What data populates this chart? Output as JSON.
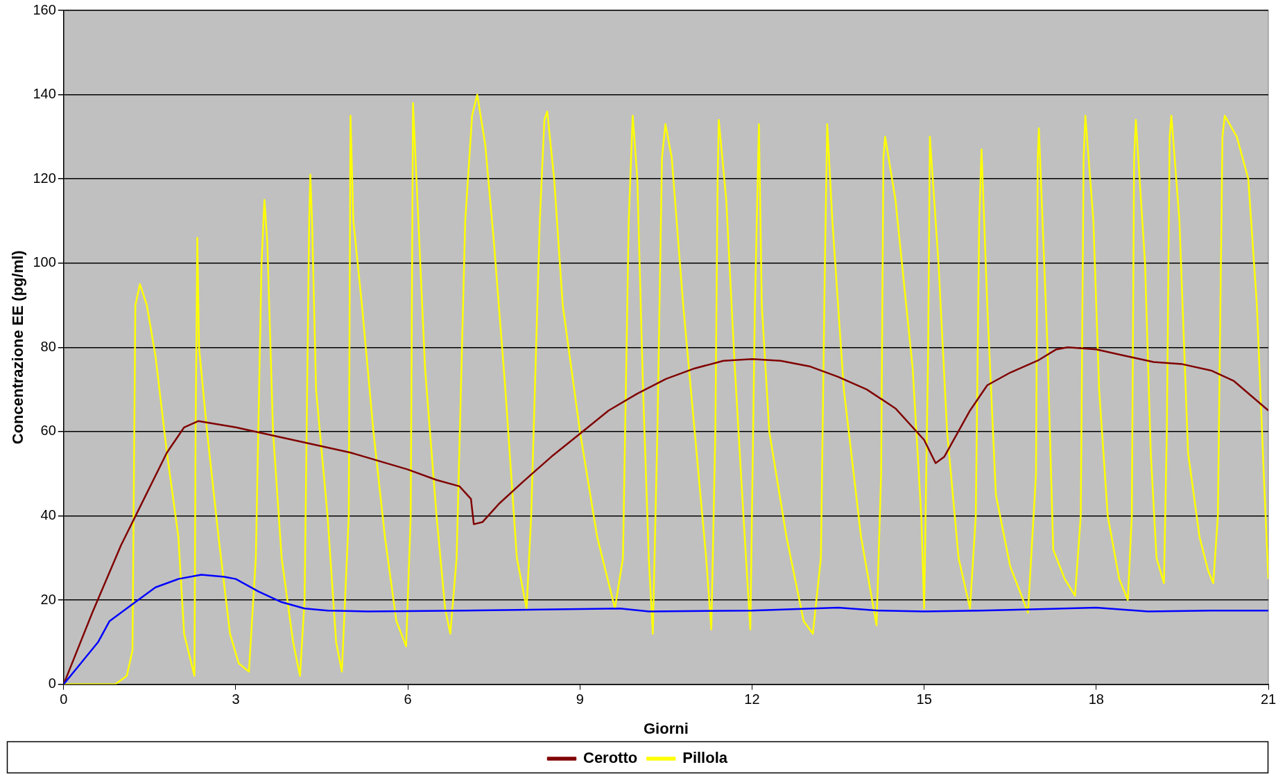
{
  "chart_data": {
    "type": "line",
    "xlabel": "Giorni",
    "ylabel": "Concentrazione EE (pg/ml)",
    "xlim": [
      0,
      21
    ],
    "xticks": [
      0,
      3,
      6,
      9,
      12,
      15,
      18,
      21
    ],
    "ylim": [
      0,
      160
    ],
    "yticks": [
      0,
      20,
      40,
      60,
      80,
      100,
      120,
      140,
      160
    ],
    "grid": "y",
    "legend": "bottom",
    "marker": "none",
    "line_style": "solid",
    "series": [
      {
        "color": "#0000ff",
        "x": [
          0,
          0.3,
          0.6,
          0.8,
          1.2,
          1.6,
          2.0,
          2.4,
          2.8,
          3.0,
          3.4,
          3.8,
          4.2,
          4.6,
          5.3,
          7,
          9.7,
          10.2,
          12,
          13.5,
          14.2,
          15,
          16,
          18,
          18.9,
          20,
          21
        ],
        "values": [
          0,
          5,
          10,
          15,
          19,
          23,
          25,
          26,
          25.5,
          25,
          22,
          19.5,
          18,
          17.5,
          17.3,
          17.5,
          18,
          17.3,
          17.5,
          18.2,
          17.5,
          17.3,
          17.5,
          18.2,
          17.3,
          17.5,
          17.5
        ]
      },
      {
        "name": "Cerotto",
        "color": "#800000",
        "x": [
          0,
          0.5,
          1,
          1.4,
          1.8,
          2.1,
          2.35,
          3,
          4,
          5,
          6,
          6.5,
          6.9,
          7.1,
          7.15,
          7.3,
          7.6,
          8,
          8.5,
          9,
          9.5,
          10,
          10.5,
          11,
          11.5,
          12,
          12.5,
          13,
          13.5,
          14,
          14.5,
          15,
          15.2,
          15.35,
          15.8,
          16.1,
          16.5,
          17,
          17.3,
          17.5,
          18,
          18.5,
          19,
          19.5,
          20,
          20.4,
          21
        ],
        "values": [
          0,
          17,
          33,
          44,
          55,
          61,
          62.5,
          61,
          58,
          55,
          51,
          48.5,
          47,
          44,
          38,
          38.5,
          43,
          48,
          54,
          59.5,
          65,
          69,
          72.5,
          75,
          76.8,
          77.2,
          76.8,
          75.5,
          73,
          70,
          65.5,
          58,
          52.5,
          54,
          65,
          71,
          74,
          77,
          79.5,
          80,
          79.5,
          78,
          76.5,
          76,
          74.5,
          72,
          65
        ]
      },
      {
        "name": "Pillola",
        "color": "#ffff00",
        "x": [
          0,
          0.9,
          1.1,
          1.2,
          1.25,
          1.33,
          1.45,
          1.6,
          1.8,
          2.0,
          2.1,
          2.28,
          2.3,
          2.33,
          2.36,
          2.5,
          2.7,
          2.9,
          3.05,
          3.23,
          3.35,
          3.45,
          3.5,
          3.55,
          3.65,
          3.8,
          4.0,
          4.12,
          4.2,
          4.28,
          4.3,
          4.33,
          4.4,
          4.6,
          4.75,
          4.85,
          4.97,
          5.0,
          5.05,
          5.2,
          5.4,
          5.6,
          5.8,
          5.97,
          6.05,
          6.09,
          6.15,
          6.3,
          6.5,
          6.65,
          6.74,
          6.85,
          7.0,
          7.12,
          7.21,
          7.35,
          7.5,
          7.7,
          7.9,
          8.07,
          8.15,
          8.3,
          8.38,
          8.43,
          8.55,
          8.7,
          9.0,
          9.3,
          9.61,
          9.75,
          9.85,
          9.92,
          10.0,
          10.1,
          10.2,
          10.27,
          10.35,
          10.43,
          10.49,
          10.6,
          10.8,
          11.0,
          11.2,
          11.29,
          11.36,
          11.4,
          11.42,
          11.55,
          11.7,
          11.85,
          11.97,
          12.05,
          12.12,
          12.17,
          12.3,
          12.6,
          12.9,
          13.06,
          13.2,
          13.27,
          13.31,
          13.4,
          13.6,
          13.9,
          14.17,
          14.25,
          14.29,
          14.32,
          14.5,
          14.8,
          14.95,
          15.0,
          15.07,
          15.1,
          15.25,
          15.4,
          15.6,
          15.8,
          15.9,
          15.96,
          16.0,
          16.1,
          16.25,
          16.5,
          16.81,
          16.95,
          16.98,
          17.0,
          17.15,
          17.25,
          17.45,
          17.63,
          17.73,
          17.78,
          17.81,
          17.95,
          18.05,
          18.2,
          18.4,
          18.55,
          18.62,
          18.66,
          18.69,
          18.85,
          18.95,
          19.05,
          19.18,
          19.23,
          19.28,
          19.31,
          19.45,
          19.6,
          19.8,
          19.95,
          20.04,
          20.12,
          20.2,
          20.24,
          20.45,
          20.65,
          20.8,
          20.92,
          21
        ],
        "values": [
          0,
          0,
          2,
          8,
          90,
          95,
          90,
          78,
          55,
          35,
          12,
          2,
          60,
          106,
          80,
          60,
          35,
          12,
          5,
          3,
          30,
          100,
          115,
          105,
          60,
          30,
          10,
          2,
          20,
          110,
          121,
          110,
          70,
          40,
          10,
          3,
          40,
          135,
          110,
          90,
          60,
          35,
          15,
          9,
          40,
          138,
          120,
          75,
          40,
          18,
          12,
          30,
          110,
          135,
          140,
          128,
          105,
          70,
          30,
          18,
          40,
          110,
          134,
          136,
          120,
          90,
          60,
          35,
          18,
          30,
          110,
          135,
          120,
          70,
          30,
          12,
          60,
          125,
          133,
          125,
          90,
          60,
          30,
          13,
          60,
          120,
          134,
          115,
          75,
          40,
          13,
          90,
          133,
          90,
          60,
          35,
          15,
          12,
          30,
          100,
          133,
          110,
          70,
          35,
          14,
          50,
          125,
          130,
          115,
          75,
          40,
          18,
          80,
          130,
          100,
          60,
          30,
          18,
          40,
          110,
          127,
          90,
          45,
          28,
          17,
          50,
          125,
          132,
          80,
          32,
          25,
          21,
          40,
          125,
          135,
          110,
          70,
          40,
          25,
          20,
          40,
          125,
          134,
          100,
          55,
          30,
          24,
          60,
          130,
          135,
          110,
          55,
          35,
          27,
          24,
          40,
          130,
          135,
          130,
          120,
          90,
          50,
          25
        ]
      }
    ]
  }
}
